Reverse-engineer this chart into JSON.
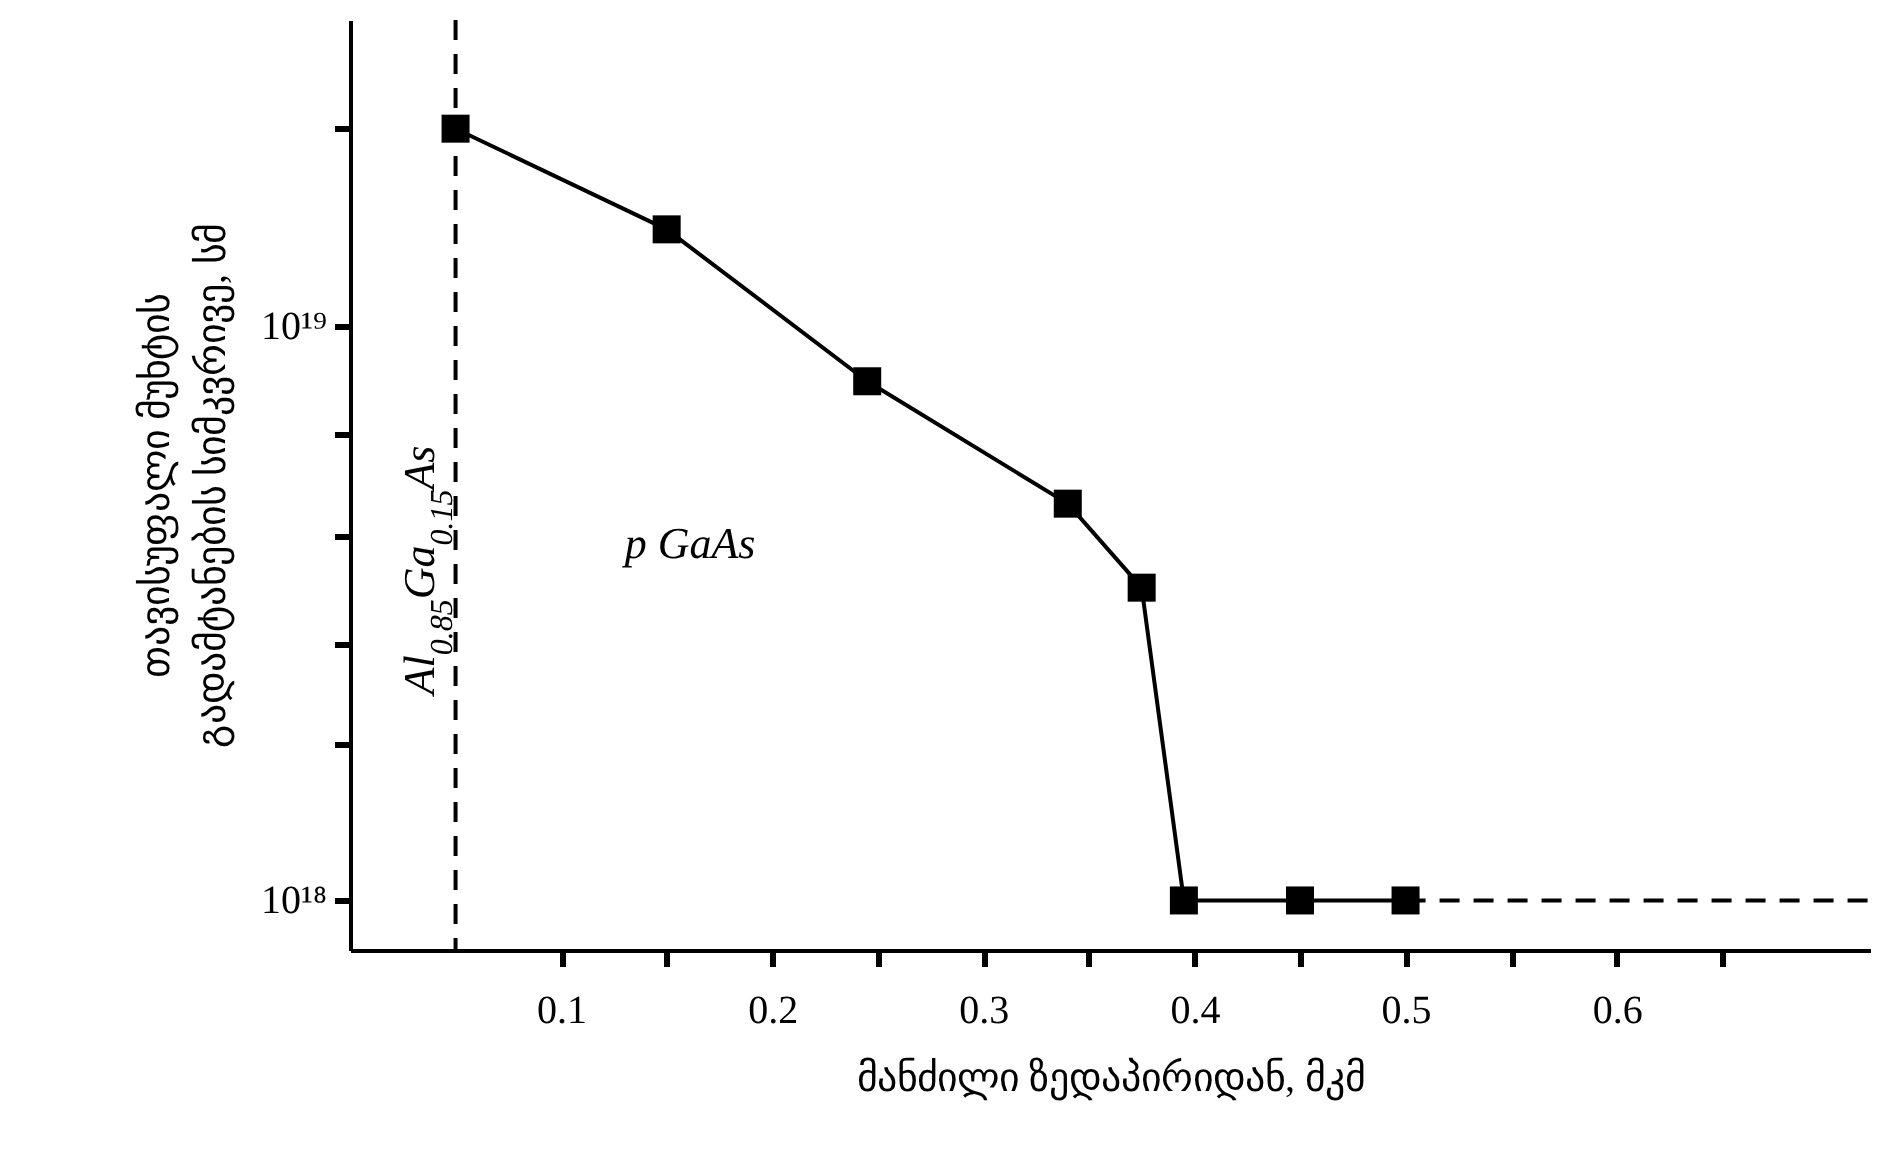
{
  "chart_data": {
    "type": "line",
    "xlabel": "მანძილი ზედაპირიდან, მკმ",
    "ylabel": "თავისუფალი მუხტის\nგადამტანების სიმკვრივე, სმ",
    "x": [
      0.05,
      0.15,
      0.245,
      0.34,
      0.375,
      0.395,
      0.45,
      0.5
    ],
    "series": [
      {
        "color": "#000000",
        "marker": "square",
        "line_style": "solid",
        "values": [
          2.2e+19,
          1.47e+19,
          8e+18,
          4.9e+18,
          3.5e+18,
          1e+18,
          1e+18,
          1e+18
        ]
      },
      {
        "type": "line",
        "color": "#000000",
        "marker": "none",
        "line_style": "dashed",
        "x": [
          0.5,
          0.72
        ],
        "values": [
          1e+18,
          1e+18
        ]
      }
    ],
    "log": "y",
    "xlim": [
      0,
      0.72
    ],
    "ylim": [
      8.2e+17,
      3.4e+19
    ],
    "xticks": [
      0.1,
      {
        "value": 0.15,
        "label": null
      },
      0.2,
      {
        "value": 0.25,
        "label": null
      },
      0.3,
      {
        "value": 0.35,
        "label": null
      },
      0.4,
      {
        "value": 0.45,
        "label": null
      },
      0.5,
      {
        "value": 0.55,
        "label": null
      },
      0.6,
      {
        "value": 0.65,
        "label": null
      }
    ],
    "yticks": [
      {
        "value": 1e+18,
        "label": "10¹⁸"
      },
      {
        "value": 1.87e+18,
        "label": null
      },
      {
        "value": 2.8e+18,
        "label": null
      },
      {
        "value": 4.3e+18,
        "label": null
      },
      {
        "value": 6.5e+18,
        "label": null
      },
      {
        "value": 1e+19,
        "label": "10¹⁹"
      },
      {
        "value": 2.2e+19,
        "label": null
      }
    ],
    "ref_lines": [
      {
        "axis": "x",
        "value": 0.05,
        "label": "Al$_{0.85}$Ga$_{0.15}$As",
        "color": "#000000",
        "line_style": "dashed"
      }
    ],
    "annotations": [
      "p GaAs"
    ],
    "grid": false
  }
}
